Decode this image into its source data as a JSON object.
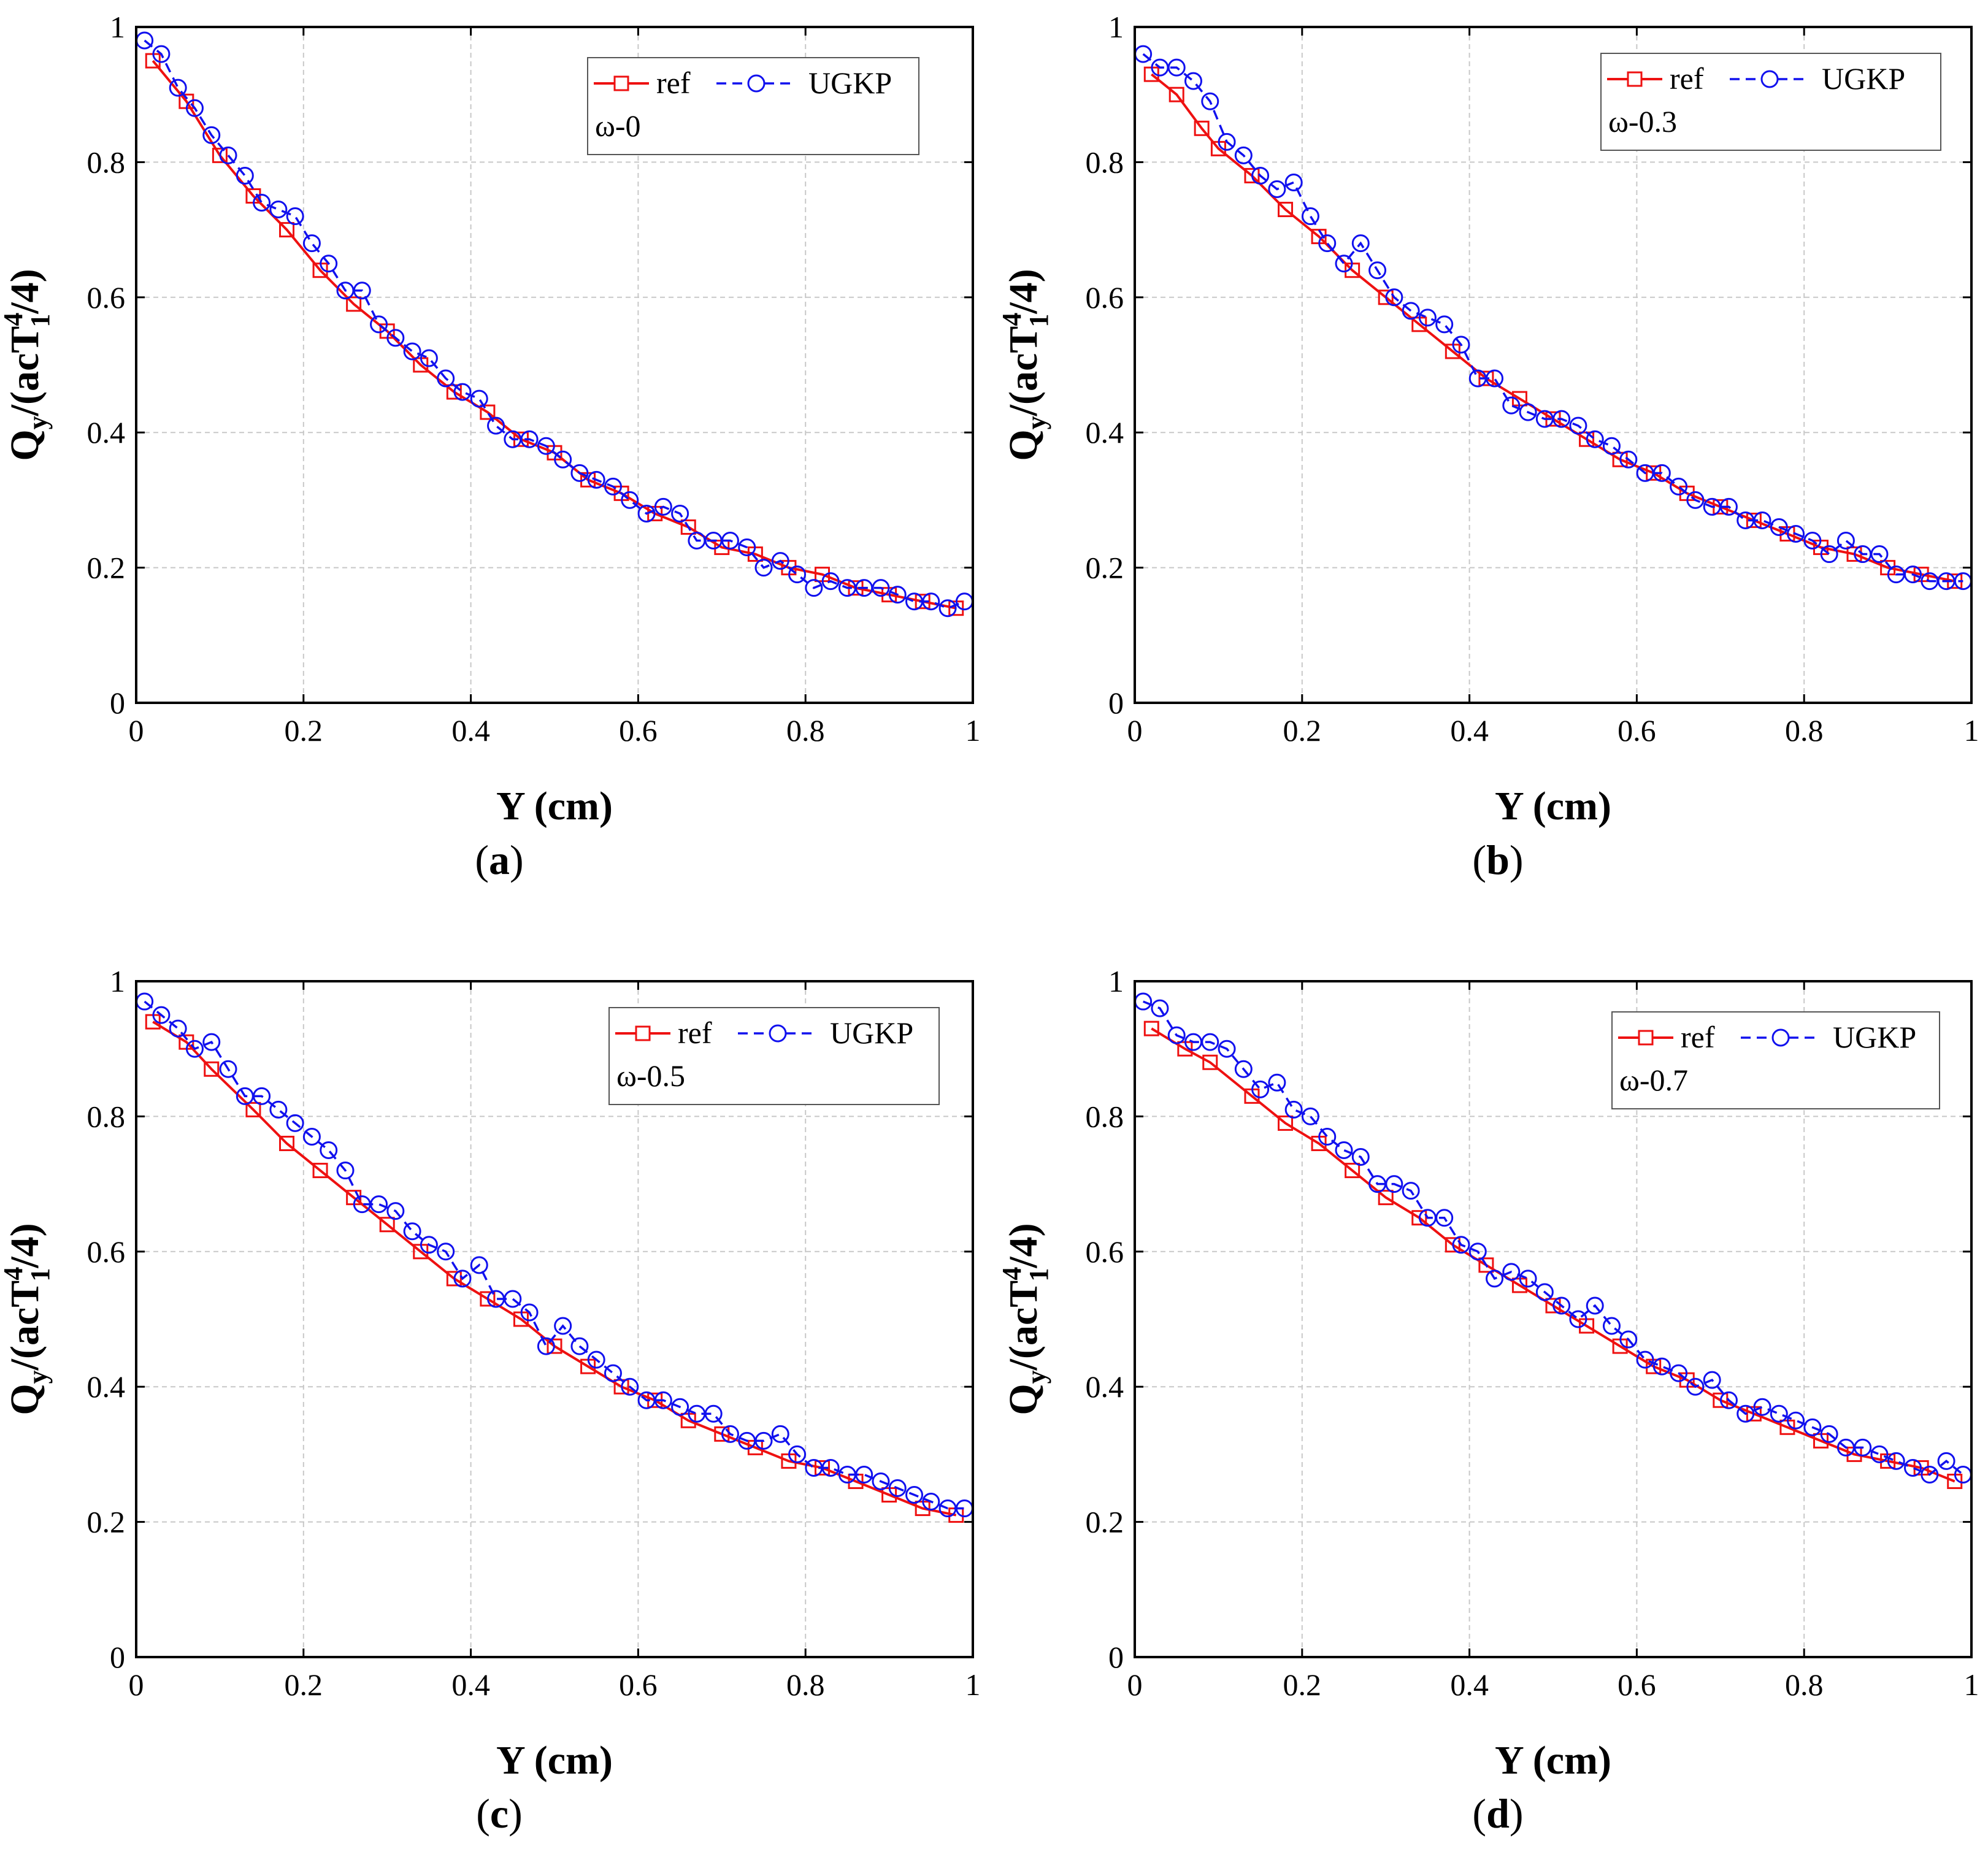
{
  "colors": {
    "ref": "#ee1111",
    "ugkp": "#1111ee",
    "grid": "#c8c8c8",
    "axis": "#000000"
  },
  "chart_data": [
    {
      "type": "line",
      "panel_label": "a",
      "annotation": "ω-0",
      "xlabel": "Y (cm)",
      "ylabel": {
        "base": "Q",
        "sub_y": "y",
        "pre": "/(acT",
        "sup": "4",
        "sub": "1",
        "post": "/4)"
      },
      "xlim": [
        0,
        1
      ],
      "ylim": [
        0,
        1
      ],
      "xticks": [
        "0",
        "0.2",
        "0.4",
        "0.6",
        "0.8",
        "1"
      ],
      "yticks": [
        "0",
        "0.2",
        "0.4",
        "0.6",
        "0.8",
        "1"
      ],
      "grid": true,
      "legend": [
        "ref",
        "UGKP"
      ],
      "series": [
        {
          "name": "ref",
          "style": "solid-square",
          "x": [
            0.02,
            0.06,
            0.1,
            0.14,
            0.18,
            0.22,
            0.26,
            0.3,
            0.34,
            0.38,
            0.42,
            0.46,
            0.5,
            0.54,
            0.58,
            0.62,
            0.66,
            0.7,
            0.74,
            0.78,
            0.82,
            0.86,
            0.9,
            0.94,
            0.98
          ],
          "y": [
            0.95,
            0.89,
            0.81,
            0.75,
            0.7,
            0.64,
            0.59,
            0.55,
            0.5,
            0.46,
            0.43,
            0.39,
            0.37,
            0.33,
            0.31,
            0.28,
            0.26,
            0.23,
            0.22,
            0.2,
            0.19,
            0.17,
            0.16,
            0.15,
            0.14
          ]
        },
        {
          "name": "UGKP",
          "style": "dash-circle",
          "x": [
            0.01,
            0.03,
            0.05,
            0.07,
            0.09,
            0.11,
            0.13,
            0.15,
            0.17,
            0.19,
            0.21,
            0.23,
            0.25,
            0.27,
            0.29,
            0.31,
            0.33,
            0.35,
            0.37,
            0.39,
            0.41,
            0.43,
            0.45,
            0.47,
            0.49,
            0.51,
            0.53,
            0.55,
            0.57,
            0.59,
            0.61,
            0.63,
            0.65,
            0.67,
            0.69,
            0.71,
            0.73,
            0.75,
            0.77,
            0.79,
            0.81,
            0.83,
            0.85,
            0.87,
            0.89,
            0.91,
            0.93,
            0.95,
            0.97,
            0.99
          ],
          "y": [
            0.98,
            0.96,
            0.91,
            0.88,
            0.84,
            0.81,
            0.78,
            0.74,
            0.73,
            0.72,
            0.68,
            0.65,
            0.61,
            0.61,
            0.56,
            0.54,
            0.52,
            0.51,
            0.48,
            0.46,
            0.45,
            0.41,
            0.39,
            0.39,
            0.38,
            0.36,
            0.34,
            0.33,
            0.32,
            0.3,
            0.28,
            0.29,
            0.28,
            0.24,
            0.24,
            0.24,
            0.23,
            0.2,
            0.21,
            0.19,
            0.17,
            0.18,
            0.17,
            0.17,
            0.17,
            0.16,
            0.15,
            0.15,
            0.14,
            0.15
          ]
        }
      ]
    },
    {
      "type": "line",
      "panel_label": "b",
      "annotation": "ω-0.3",
      "xlabel": "Y (cm)",
      "ylabel": {
        "base": "Q",
        "sub_y": "y",
        "pre": "/(acT",
        "sup": "4",
        "sub": "1",
        "post": "/4)"
      },
      "xlim": [
        0,
        1
      ],
      "ylim": [
        0,
        1
      ],
      "xticks": [
        "0",
        "0.2",
        "0.4",
        "0.6",
        "0.8",
        "1"
      ],
      "yticks": [
        "0",
        "0.2",
        "0.4",
        "0.6",
        "0.8",
        "1"
      ],
      "grid": true,
      "legend": [
        "ref",
        "UGKP"
      ],
      "series": [
        {
          "name": "ref",
          "style": "solid-square",
          "x": [
            0.02,
            0.05,
            0.08,
            0.1,
            0.14,
            0.18,
            0.22,
            0.26,
            0.3,
            0.34,
            0.38,
            0.42,
            0.46,
            0.5,
            0.54,
            0.58,
            0.62,
            0.66,
            0.7,
            0.74,
            0.78,
            0.82,
            0.86,
            0.9,
            0.94,
            0.98
          ],
          "y": [
            0.93,
            0.9,
            0.85,
            0.82,
            0.78,
            0.73,
            0.69,
            0.64,
            0.6,
            0.56,
            0.52,
            0.48,
            0.45,
            0.42,
            0.39,
            0.36,
            0.34,
            0.31,
            0.29,
            0.27,
            0.25,
            0.23,
            0.22,
            0.2,
            0.19,
            0.18
          ]
        },
        {
          "name": "UGKP",
          "style": "dash-circle",
          "x": [
            0.01,
            0.03,
            0.05,
            0.07,
            0.09,
            0.11,
            0.13,
            0.15,
            0.17,
            0.19,
            0.21,
            0.23,
            0.25,
            0.27,
            0.29,
            0.31,
            0.33,
            0.35,
            0.37,
            0.39,
            0.41,
            0.43,
            0.45,
            0.47,
            0.49,
            0.51,
            0.53,
            0.55,
            0.57,
            0.59,
            0.61,
            0.63,
            0.65,
            0.67,
            0.69,
            0.71,
            0.73,
            0.75,
            0.77,
            0.79,
            0.81,
            0.83,
            0.85,
            0.87,
            0.89,
            0.91,
            0.93,
            0.95,
            0.97,
            0.99
          ],
          "y": [
            0.96,
            0.94,
            0.94,
            0.92,
            0.89,
            0.83,
            0.81,
            0.78,
            0.76,
            0.77,
            0.72,
            0.68,
            0.65,
            0.68,
            0.64,
            0.6,
            0.58,
            0.57,
            0.56,
            0.53,
            0.48,
            0.48,
            0.44,
            0.43,
            0.42,
            0.42,
            0.41,
            0.39,
            0.38,
            0.36,
            0.34,
            0.34,
            0.32,
            0.3,
            0.29,
            0.29,
            0.27,
            0.27,
            0.26,
            0.25,
            0.24,
            0.22,
            0.24,
            0.22,
            0.22,
            0.19,
            0.19,
            0.18,
            0.18,
            0.18
          ]
        }
      ]
    },
    {
      "type": "line",
      "panel_label": "c",
      "annotation": "ω-0.5",
      "xlabel": "Y (cm)",
      "ylabel": {
        "base": "Q",
        "sub_y": "y",
        "pre": "/(acT",
        "sup": "4",
        "sub": "1",
        "post": "/4)"
      },
      "xlim": [
        0,
        1
      ],
      "ylim": [
        0,
        1
      ],
      "xticks": [
        "0",
        "0.2",
        "0.4",
        "0.6",
        "0.8",
        "1"
      ],
      "yticks": [
        "0",
        "0.2",
        "0.4",
        "0.6",
        "0.8",
        "1"
      ],
      "grid": true,
      "legend": [
        "ref",
        "UGKP"
      ],
      "series": [
        {
          "name": "ref",
          "style": "solid-square",
          "x": [
            0.02,
            0.06,
            0.09,
            0.14,
            0.18,
            0.22,
            0.26,
            0.3,
            0.34,
            0.38,
            0.42,
            0.46,
            0.5,
            0.54,
            0.58,
            0.62,
            0.66,
            0.7,
            0.74,
            0.78,
            0.82,
            0.86,
            0.9,
            0.94,
            0.98
          ],
          "y": [
            0.94,
            0.91,
            0.87,
            0.81,
            0.76,
            0.72,
            0.68,
            0.64,
            0.6,
            0.56,
            0.53,
            0.5,
            0.46,
            0.43,
            0.4,
            0.38,
            0.35,
            0.33,
            0.31,
            0.29,
            0.28,
            0.26,
            0.24,
            0.22,
            0.21
          ]
        },
        {
          "name": "UGKP",
          "style": "dash-circle",
          "x": [
            0.01,
            0.03,
            0.05,
            0.07,
            0.09,
            0.11,
            0.13,
            0.15,
            0.17,
            0.19,
            0.21,
            0.23,
            0.25,
            0.27,
            0.29,
            0.31,
            0.33,
            0.35,
            0.37,
            0.39,
            0.41,
            0.43,
            0.45,
            0.47,
            0.49,
            0.51,
            0.53,
            0.55,
            0.57,
            0.59,
            0.61,
            0.63,
            0.65,
            0.67,
            0.69,
            0.71,
            0.73,
            0.75,
            0.77,
            0.79,
            0.81,
            0.83,
            0.85,
            0.87,
            0.89,
            0.91,
            0.93,
            0.95,
            0.97,
            0.99
          ],
          "y": [
            0.97,
            0.95,
            0.93,
            0.9,
            0.91,
            0.87,
            0.83,
            0.83,
            0.81,
            0.79,
            0.77,
            0.75,
            0.72,
            0.67,
            0.67,
            0.66,
            0.63,
            0.61,
            0.6,
            0.56,
            0.58,
            0.53,
            0.53,
            0.51,
            0.46,
            0.49,
            0.46,
            0.44,
            0.42,
            0.4,
            0.38,
            0.38,
            0.37,
            0.36,
            0.36,
            0.33,
            0.32,
            0.32,
            0.33,
            0.3,
            0.28,
            0.28,
            0.27,
            0.27,
            0.26,
            0.25,
            0.24,
            0.23,
            0.22,
            0.22
          ]
        }
      ]
    },
    {
      "type": "line",
      "panel_label": "d",
      "annotation": "ω-0.7",
      "xlabel": "Y (cm)",
      "ylabel": {
        "base": "Q",
        "sub_y": "y",
        "pre": "/(acT",
        "sup": "4",
        "sub": "1",
        "post": "/4)"
      },
      "xlim": [
        0,
        1
      ],
      "ylim": [
        0,
        1
      ],
      "xticks": [
        "0",
        "0.2",
        "0.4",
        "0.6",
        "0.8",
        "1"
      ],
      "yticks": [
        "0",
        "0.2",
        "0.4",
        "0.6",
        "0.8",
        "1"
      ],
      "grid": true,
      "legend": [
        "ref",
        "UGKP"
      ],
      "series": [
        {
          "name": "ref",
          "style": "solid-square",
          "x": [
            0.02,
            0.06,
            0.09,
            0.14,
            0.18,
            0.22,
            0.26,
            0.3,
            0.34,
            0.38,
            0.42,
            0.46,
            0.5,
            0.54,
            0.58,
            0.62,
            0.66,
            0.7,
            0.74,
            0.78,
            0.82,
            0.86,
            0.9,
            0.94,
            0.98
          ],
          "y": [
            0.93,
            0.9,
            0.88,
            0.83,
            0.79,
            0.76,
            0.72,
            0.68,
            0.65,
            0.61,
            0.58,
            0.55,
            0.52,
            0.49,
            0.46,
            0.43,
            0.41,
            0.38,
            0.36,
            0.34,
            0.32,
            0.3,
            0.29,
            0.28,
            0.26
          ]
        },
        {
          "name": "UGKP",
          "style": "dash-circle",
          "x": [
            0.01,
            0.03,
            0.05,
            0.07,
            0.09,
            0.11,
            0.13,
            0.15,
            0.17,
            0.19,
            0.21,
            0.23,
            0.25,
            0.27,
            0.29,
            0.31,
            0.33,
            0.35,
            0.37,
            0.39,
            0.41,
            0.43,
            0.45,
            0.47,
            0.49,
            0.51,
            0.53,
            0.55,
            0.57,
            0.59,
            0.61,
            0.63,
            0.65,
            0.67,
            0.69,
            0.71,
            0.73,
            0.75,
            0.77,
            0.79,
            0.81,
            0.83,
            0.85,
            0.87,
            0.89,
            0.91,
            0.93,
            0.95,
            0.97,
            0.99
          ],
          "y": [
            0.97,
            0.96,
            0.92,
            0.91,
            0.91,
            0.9,
            0.87,
            0.84,
            0.85,
            0.81,
            0.8,
            0.77,
            0.75,
            0.74,
            0.7,
            0.7,
            0.69,
            0.65,
            0.65,
            0.61,
            0.6,
            0.56,
            0.57,
            0.56,
            0.54,
            0.52,
            0.5,
            0.52,
            0.49,
            0.47,
            0.44,
            0.43,
            0.42,
            0.4,
            0.41,
            0.38,
            0.36,
            0.37,
            0.36,
            0.35,
            0.34,
            0.33,
            0.31,
            0.31,
            0.3,
            0.29,
            0.28,
            0.27,
            0.29,
            0.27
          ]
        }
      ]
    }
  ]
}
